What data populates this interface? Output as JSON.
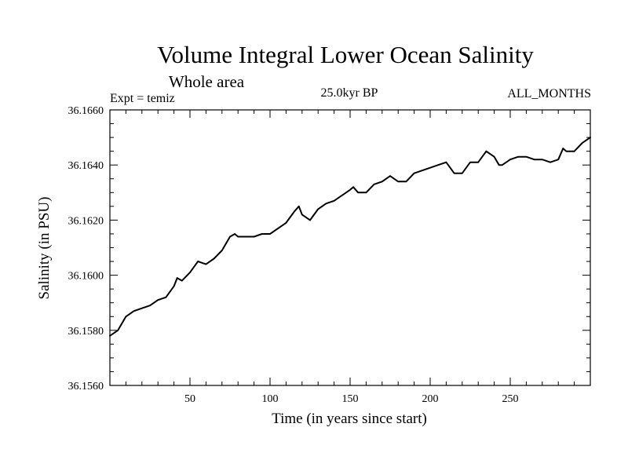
{
  "chart_data": {
    "type": "line",
    "title": "Volume Integral Lower Ocean Salinity",
    "subtitle": "Whole area",
    "left_label": "Expt = temiz",
    "center_label": "25.0kyr BP",
    "right_label": "ALL_MONTHS",
    "xlabel": "Time (in years since start)",
    "ylabel": "Salinity (in PSU)",
    "xlim": [
      0,
      300
    ],
    "ylim": [
      36.156,
      36.166
    ],
    "x_ticks": [
      50,
      100,
      150,
      200,
      250
    ],
    "x_tick_labels": [
      "50",
      "100",
      "150",
      "200",
      "250"
    ],
    "y_ticks": [
      36.156,
      36.158,
      36.16,
      36.162,
      36.164,
      36.166
    ],
    "y_tick_labels": [
      "36.1560",
      "36.1580",
      "36.1600",
      "36.1620",
      "36.1640",
      "36.1660"
    ],
    "grid": false,
    "series": [
      {
        "name": "Salinity",
        "x": [
          0,
          5,
          10,
          15,
          20,
          25,
          30,
          35,
          40,
          42,
          45,
          50,
          55,
          60,
          65,
          70,
          75,
          78,
          80,
          85,
          90,
          95,
          100,
          105,
          110,
          115,
          118,
          120,
          125,
          130,
          135,
          140,
          145,
          150,
          152,
          155,
          160,
          165,
          170,
          175,
          180,
          185,
          190,
          195,
          200,
          205,
          210,
          215,
          220,
          225,
          230,
          235,
          240,
          243,
          245,
          250,
          255,
          260,
          265,
          270,
          275,
          280,
          283,
          285,
          290,
          295,
          300
        ],
        "values": [
          36.1578,
          36.158,
          36.1585,
          36.1587,
          36.1588,
          36.1589,
          36.1591,
          36.1592,
          36.1596,
          36.1599,
          36.1598,
          36.1601,
          36.1605,
          36.1604,
          36.1606,
          36.1609,
          36.1614,
          36.1615,
          36.1614,
          36.1614,
          36.1614,
          36.1615,
          36.1615,
          36.1617,
          36.1619,
          36.1623,
          36.1625,
          36.1622,
          36.162,
          36.1624,
          36.1626,
          36.1627,
          36.1629,
          36.1631,
          36.1632,
          36.163,
          36.163,
          36.1633,
          36.1634,
          36.1636,
          36.1634,
          36.1634,
          36.1637,
          36.1638,
          36.1639,
          36.164,
          36.1641,
          36.1637,
          36.1637,
          36.1641,
          36.1641,
          36.1645,
          36.1643,
          36.164,
          36.164,
          36.1642,
          36.1643,
          36.1643,
          36.1642,
          36.1642,
          36.1641,
          36.1642,
          36.1646,
          36.1645,
          36.1645,
          36.1648,
          36.165
        ]
      }
    ]
  }
}
